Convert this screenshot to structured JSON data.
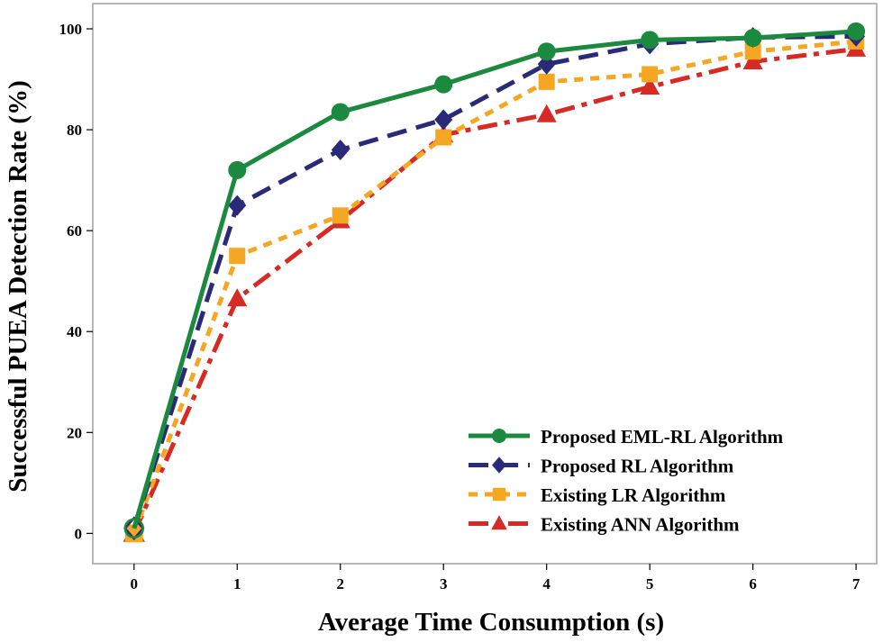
{
  "chart_data": {
    "type": "line",
    "title": "",
    "xlabel": "Average Time Consumption (s)",
    "ylabel": "Successful PUEA Detection Rate (%)",
    "x": [
      0,
      1,
      2,
      3,
      4,
      5,
      6,
      7
    ],
    "x_tick_labels": [
      "0",
      "1",
      "2",
      "3",
      "4",
      "5",
      "6",
      "7"
    ],
    "y_tick_labels": [
      "0",
      "20",
      "40",
      "60",
      "80",
      "100"
    ],
    "y_ticks": [
      0,
      20,
      40,
      60,
      80,
      100
    ],
    "xlim": [
      -0.4,
      7.2
    ],
    "ylim": [
      -6,
      105
    ],
    "legend_position": "bottom-right",
    "series": [
      {
        "name": "Proposed EML-RL Algorithm",
        "color": "#1b8a3e",
        "marker": "circle",
        "dash": "solid",
        "values": [
          1,
          72,
          83.5,
          89,
          95.5,
          97.8,
          98.2,
          99.5
        ]
      },
      {
        "name": "Proposed RL Algorithm",
        "color": "#2b2a78",
        "marker": "diamond",
        "dash": "dashed",
        "values": [
          1,
          65,
          76,
          82,
          93,
          97,
          98.3,
          98.5
        ]
      },
      {
        "name": "Existing LR Algorithm",
        "color": "#f5a623",
        "marker": "square",
        "dash": "dotted",
        "values": [
          0,
          55,
          63,
          78.5,
          89.5,
          91,
          95.5,
          97.5
        ]
      },
      {
        "name": "Existing ANN Algorithm",
        "color": "#d62a25",
        "marker": "triangle",
        "dash": "dashdot",
        "values": [
          0,
          46.5,
          62,
          79,
          83,
          88.5,
          93.5,
          96
        ]
      }
    ]
  }
}
